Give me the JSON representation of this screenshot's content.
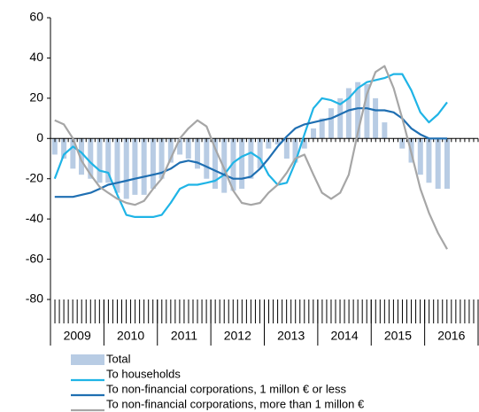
{
  "chart_data": {
    "type": "bar-line",
    "x": [
      2009.08,
      2009.25,
      2009.42,
      2009.58,
      2009.75,
      2009.92,
      2010.08,
      2010.25,
      2010.42,
      2010.58,
      2010.75,
      2010.92,
      2011.08,
      2011.25,
      2011.42,
      2011.58,
      2011.75,
      2011.92,
      2012.08,
      2012.25,
      2012.42,
      2012.58,
      2012.75,
      2012.92,
      2013.08,
      2013.25,
      2013.42,
      2013.58,
      2013.75,
      2013.92,
      2014.08,
      2014.25,
      2014.42,
      2014.58,
      2014.75,
      2014.92,
      2015.08,
      2015.25,
      2015.42,
      2015.58,
      2015.75,
      2015.92,
      2016.08,
      2016.25,
      2016.42
    ],
    "series": [
      {
        "name": "Total",
        "kind": "bar",
        "color": "#b8cce4",
        "values": [
          -8,
          -10,
          -15,
          -18,
          -20,
          -22,
          -22,
          -27,
          -30,
          -28,
          -28,
          -25,
          -20,
          -12,
          -8,
          -10,
          -15,
          -20,
          -25,
          -27,
          -26,
          -25,
          -20,
          -15,
          -5,
          -3,
          -10,
          -12,
          -5,
          5,
          10,
          15,
          20,
          25,
          28,
          27,
          20,
          8,
          0,
          -5,
          -12,
          -18,
          -22,
          -25,
          -25
        ]
      },
      {
        "name": "To households",
        "kind": "line",
        "color": "#1fb4e6",
        "values": [
          -20,
          -8,
          -4,
          -7,
          -12,
          -16,
          -17,
          -28,
          -38,
          -39,
          -39,
          -39,
          -38,
          -32,
          -25,
          -23,
          -23,
          -22,
          -21,
          -18,
          -12,
          -9,
          -7,
          -10,
          -18,
          -23,
          -22,
          -12,
          2,
          15,
          20,
          19,
          17,
          20,
          25,
          28,
          29,
          30,
          32,
          32,
          24,
          13,
          8,
          12,
          18
        ]
      },
      {
        "name": "To non-financial corporations, 1 millon € or less",
        "kind": "line",
        "color": "#1f6fb2",
        "values": [
          -29,
          -29,
          -29,
          -28,
          -27,
          -25,
          -23,
          -22,
          -21,
          -20,
          -19,
          -18,
          -17,
          -15,
          -12,
          -11,
          -12,
          -14,
          -16,
          -18,
          -20,
          -20,
          -19,
          -15,
          -10,
          -4,
          1,
          5,
          7,
          8,
          9,
          10,
          12,
          14,
          15,
          15,
          14,
          14,
          13,
          10,
          5,
          2,
          0,
          0,
          0
        ]
      },
      {
        "name": "To non-financial corporations, more than 1 millon €",
        "kind": "line",
        "color": "#a6a6a6",
        "values": [
          9,
          7,
          0,
          -11,
          -18,
          -24,
          -27,
          -30,
          -32,
          -33,
          -31,
          -25,
          -20,
          -10,
          0,
          5,
          9,
          6,
          -5,
          -15,
          -26,
          -32,
          -33,
          -32,
          -27,
          -23,
          -17,
          -10,
          -8,
          -18,
          -27,
          -30,
          -27,
          -18,
          3,
          22,
          33,
          36,
          25,
          10,
          -7,
          -25,
          -37,
          -47,
          -55
        ]
      }
    ],
    "xlim": [
      2009,
      2017
    ],
    "xticks": [
      {
        "value": 2009.5,
        "label": "2009"
      },
      {
        "value": 2010.5,
        "label": "2010"
      },
      {
        "value": 2011.5,
        "label": "2011"
      },
      {
        "value": 2012.5,
        "label": "2012"
      },
      {
        "value": 2013.5,
        "label": "2013"
      },
      {
        "value": 2014.5,
        "label": "2014"
      },
      {
        "value": 2015.5,
        "label": "2015"
      },
      {
        "value": 2016.5,
        "label": "2016"
      }
    ],
    "ylim": [
      -80,
      60
    ],
    "yticks": [
      -80,
      -60,
      -40,
      -20,
      0,
      20,
      40,
      60
    ]
  }
}
